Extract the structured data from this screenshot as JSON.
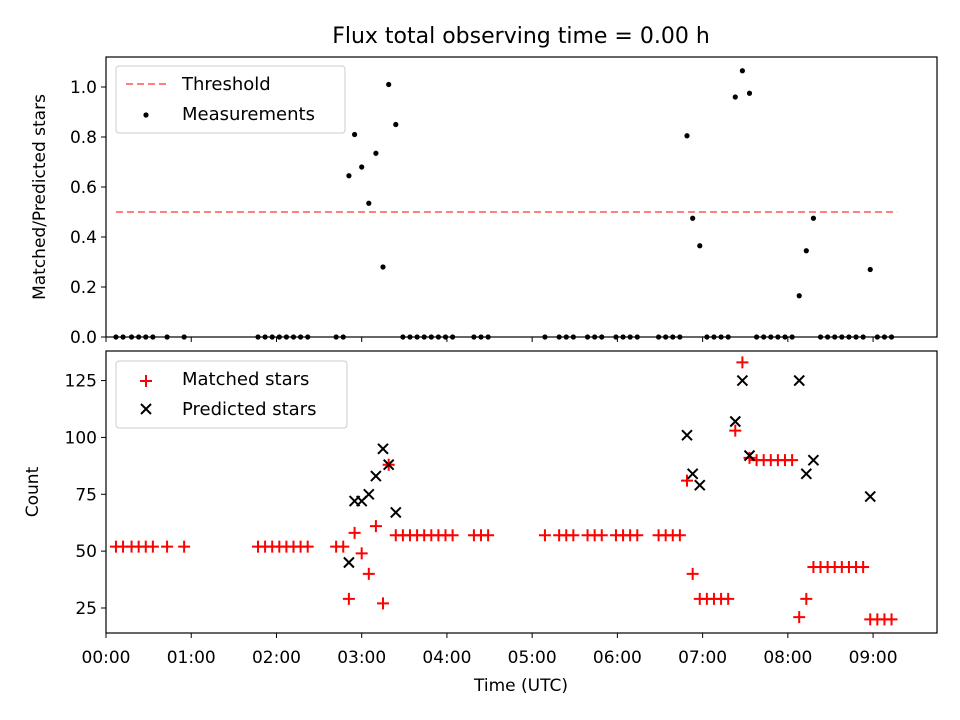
{
  "figure": {
    "title": "Flux total observing time = 0.00 h",
    "xlabel": "Time (UTC)",
    "xticks": [
      "00:00",
      "01:00",
      "02:00",
      "03:00",
      "04:00",
      "05:00",
      "06:00",
      "07:00",
      "08:00",
      "09:00"
    ]
  },
  "chart_data": [
    {
      "type": "scatter",
      "ylabel": "Matched/Predicted stars",
      "xlim": [
        "2000-01-01T00:00",
        "2000-01-01T09:45"
      ],
      "ylim": [
        0,
        1.12
      ],
      "yticks": [
        "0.0",
        "0.2",
        "0.4",
        "0.6",
        "0.8",
        "1.0"
      ],
      "legend": {
        "position": "top-left",
        "entries": [
          "Threshold",
          "Measurements"
        ]
      },
      "threshold": {
        "name": "Threshold",
        "value": 0.5,
        "x_range": [
          "00:07",
          "09:17"
        ],
        "color": "#ff7f7f"
      },
      "series": [
        {
          "name": "Measurements",
          "color": "#000000",
          "x": [
            "00:07",
            "00:12",
            "00:18",
            "00:23",
            "00:28",
            "00:33",
            "00:43",
            "00:55",
            "01:47",
            "01:52",
            "01:57",
            "02:02",
            "02:07",
            "02:12",
            "02:17",
            "02:22",
            "02:42",
            "02:47",
            "02:51",
            "02:55",
            "03:00",
            "03:05",
            "03:10",
            "03:15",
            "03:19",
            "03:24",
            "03:29",
            "03:34",
            "03:39",
            "03:44",
            "03:49",
            "03:54",
            "03:59",
            "04:04",
            "04:19",
            "04:24",
            "04:29",
            "05:09",
            "05:19",
            "05:24",
            "05:29",
            "05:39",
            "05:44",
            "05:49",
            "05:59",
            "06:04",
            "06:09",
            "06:14",
            "06:29",
            "06:34",
            "06:39",
            "06:44",
            "06:49",
            "06:53",
            "06:58",
            "07:03",
            "07:08",
            "07:13",
            "07:18",
            "07:23",
            "07:28",
            "07:33",
            "07:38",
            "07:43",
            "07:48",
            "07:53",
            "07:58",
            "08:03",
            "08:08",
            "08:13",
            "08:18",
            "08:23",
            "08:28",
            "08:33",
            "08:38",
            "08:43",
            "08:48",
            "08:53",
            "08:58",
            "09:03",
            "09:08",
            "09:13"
          ],
          "y": [
            0,
            0,
            0,
            0,
            0,
            0,
            0,
            0,
            0,
            0,
            0,
            0,
            0,
            0,
            0,
            0,
            0,
            0,
            0.645,
            0.81,
            0.68,
            0.535,
            0.735,
            0.28,
            1.01,
            0.85,
            0,
            0,
            0,
            0,
            0,
            0,
            0,
            0,
            0,
            0,
            0,
            0,
            0,
            0,
            0,
            0,
            0,
            0,
            0,
            0,
            0,
            0,
            0,
            0,
            0,
            0,
            0.805,
            0.475,
            0.365,
            0,
            0,
            0,
            0,
            0.96,
            1.065,
            0.975,
            0,
            0,
            0,
            0,
            0,
            0,
            0.165,
            0.345,
            0.475,
            0,
            0,
            0,
            0,
            0,
            0,
            0,
            0.27,
            0,
            0,
            0
          ]
        }
      ]
    },
    {
      "type": "scatter",
      "ylabel": "Count",
      "xlim": [
        "2000-01-01T00:00",
        "2000-01-01T09:45"
      ],
      "ylim": [
        14,
        138
      ],
      "yticks": [
        "25",
        "50",
        "75",
        "100",
        "125"
      ],
      "legend": {
        "position": "top-left",
        "entries": [
          "Matched stars",
          "Predicted stars"
        ]
      },
      "series": [
        {
          "name": "Matched stars",
          "color": "#ff0000",
          "marker": "+",
          "x": [
            "00:07",
            "00:12",
            "00:18",
            "00:23",
            "00:28",
            "00:33",
            "00:43",
            "00:55",
            "01:47",
            "01:52",
            "01:57",
            "02:02",
            "02:07",
            "02:12",
            "02:17",
            "02:22",
            "02:42",
            "02:47",
            "02:51",
            "02:55",
            "03:00",
            "03:05",
            "03:10",
            "03:15",
            "03:19",
            "03:24",
            "03:29",
            "03:34",
            "03:39",
            "03:44",
            "03:49",
            "03:54",
            "03:59",
            "04:04",
            "04:19",
            "04:24",
            "04:29",
            "05:09",
            "05:19",
            "05:24",
            "05:29",
            "05:39",
            "05:44",
            "05:49",
            "05:59",
            "06:04",
            "06:09",
            "06:14",
            "06:29",
            "06:34",
            "06:39",
            "06:44",
            "06:49",
            "06:53",
            "06:58",
            "07:03",
            "07:08",
            "07:13",
            "07:18",
            "07:23",
            "07:28",
            "07:33",
            "07:38",
            "07:43",
            "07:48",
            "07:53",
            "07:58",
            "08:03",
            "08:08",
            "08:13",
            "08:18",
            "08:23",
            "08:28",
            "08:33",
            "08:38",
            "08:43",
            "08:48",
            "08:53",
            "08:58",
            "09:03",
            "09:08",
            "09:13"
          ],
          "y": [
            52,
            52,
            52,
            52,
            52,
            52,
            52,
            52,
            52,
            52,
            52,
            52,
            52,
            52,
            52,
            52,
            52,
            52,
            29,
            58,
            49,
            40,
            61,
            27,
            88,
            57,
            57,
            57,
            57,
            57,
            57,
            57,
            57,
            57,
            57,
            57,
            57,
            57,
            57,
            57,
            57,
            57,
            57,
            57,
            57,
            57,
            57,
            57,
            57,
            57,
            57,
            57,
            81,
            40,
            29,
            29,
            29,
            29,
            29,
            103,
            133,
            91,
            90,
            90,
            90,
            90,
            90,
            90,
            21,
            29,
            43,
            43,
            43,
            43,
            43,
            43,
            43,
            43,
            20,
            20,
            20,
            20
          ]
        },
        {
          "name": "Predicted stars",
          "color": "#000000",
          "marker": "x",
          "x": [
            "02:51",
            "02:55",
            "03:00",
            "03:05",
            "03:10",
            "03:15",
            "03:19",
            "03:24",
            "06:49",
            "06:53",
            "06:58",
            "07:23",
            "07:28",
            "07:33",
            "08:08",
            "08:13",
            "08:18",
            "08:58"
          ],
          "y": [
            45,
            72,
            72,
            75,
            83,
            95,
            88,
            67,
            101,
            84,
            79,
            107,
            125,
            92,
            125,
            84,
            90,
            74
          ]
        }
      ]
    }
  ]
}
